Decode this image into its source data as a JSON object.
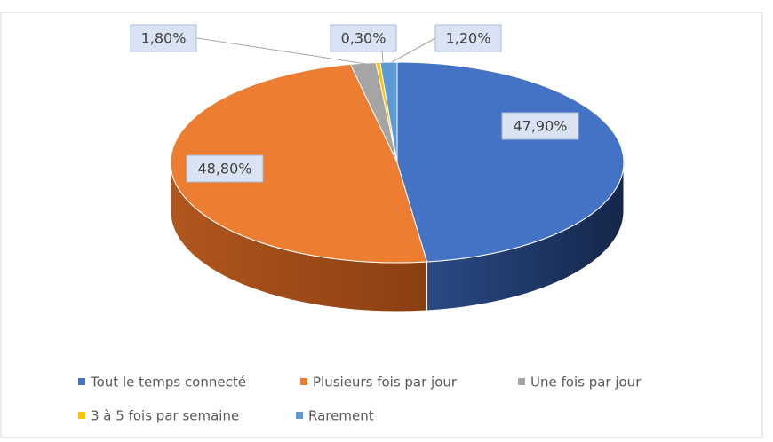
{
  "chart_data": {
    "type": "pie3d",
    "categories": [
      "Tout le temps connecté",
      "Plusieurs fois par jour",
      "Une fois par jour",
      "3 à 5 fois par semaine",
      "Rarement"
    ],
    "values": [
      47.9,
      48.8,
      1.8,
      0.3,
      1.2
    ],
    "value_labels": [
      "47,90%",
      "48,80%",
      "1,80%",
      "0,30%",
      "1,20%"
    ],
    "colors": [
      "#4472c4",
      "#ed7d31",
      "#a5a5a5",
      "#ffc000",
      "#5b9bd5"
    ],
    "legend": "bottom"
  }
}
